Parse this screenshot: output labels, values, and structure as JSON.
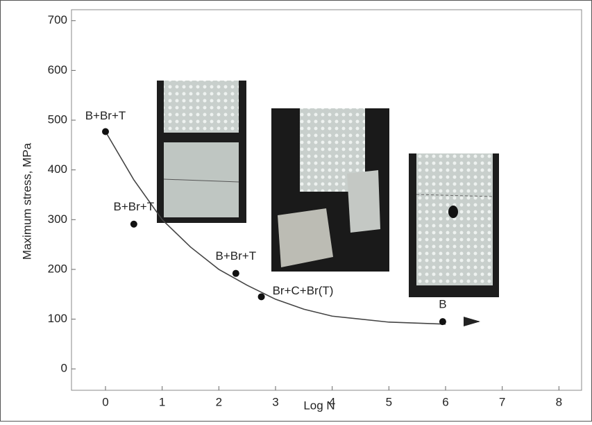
{
  "chart_data": {
    "type": "scatter",
    "ylabel": "Maximum stress, MPa",
    "xlabel": "Log N",
    "xlim": [
      -0.6,
      8.4
    ],
    "ylim": [
      -43,
      722
    ],
    "xticks": [
      0,
      1,
      2,
      3,
      4,
      5,
      6,
      7,
      8
    ],
    "yticks": [
      0,
      100,
      200,
      300,
      400,
      500,
      600,
      700
    ],
    "points": {
      "x": [
        0,
        0.5,
        2.3,
        2.75,
        5.95
      ],
      "y": [
        477,
        291,
        192,
        145,
        95
      ],
      "labels": [
        "B+Br+T",
        "B+Br+T",
        "B+Br+T",
        "Br+C+Br(T)",
        "B"
      ],
      "color": "#111111"
    },
    "fit": {
      "x": [
        0,
        0.5,
        1,
        1.5,
        2,
        2.5,
        3,
        3.5,
        4,
        5,
        6
      ],
      "y": [
        477,
        380,
        300,
        245,
        200,
        168,
        140,
        120,
        106,
        94,
        90
      ],
      "color": "#444444"
    }
  }
}
